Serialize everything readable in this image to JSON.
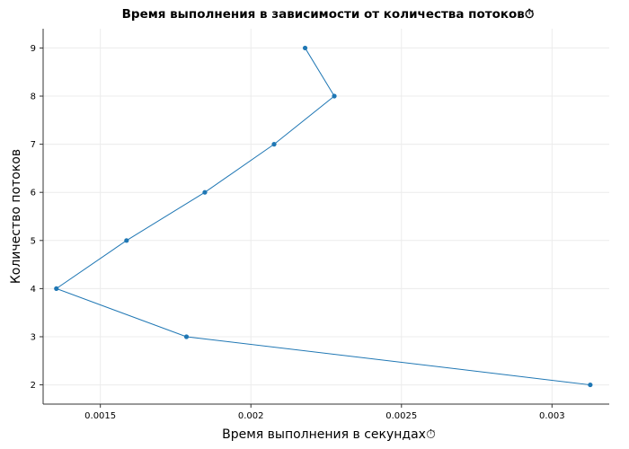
{
  "chart_data": {
    "type": "line",
    "title": "Время выполнения в зависимости от количества потоков⏱",
    "xlabel": "Время выполнения в секундах⏱",
    "ylabel": "Количество потоков",
    "xlim": [
      0.00131,
      0.00319
    ],
    "ylim": [
      1.6,
      9.4
    ],
    "x_ticks": [
      0.0015,
      0.002,
      0.0025,
      0.003
    ],
    "x_tick_labels": [
      "0.0015",
      "0.002",
      "0.0025",
      "0.003"
    ],
    "y_ticks": [
      2,
      3,
      4,
      5,
      6,
      7,
      8,
      9
    ],
    "y_tick_labels": [
      "2",
      "3",
      "4",
      "5",
      "6",
      "7",
      "8",
      "9"
    ],
    "grid": true,
    "color": "#1f77b4",
    "series": [
      {
        "x": [
          0.003127,
          0.001786,
          0.001354,
          0.001587,
          0.001847,
          0.002077,
          0.002277,
          0.00218
        ],
        "y": [
          2,
          3,
          4,
          5,
          6,
          7,
          8,
          9
        ]
      }
    ]
  }
}
